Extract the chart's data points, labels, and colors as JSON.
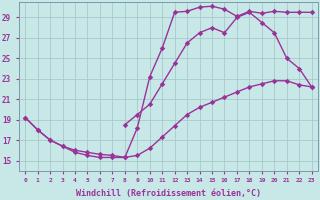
{
  "background_color": "#c8e8e8",
  "grid_color": "#a0c4c8",
  "line_color": "#993399",
  "xlabel": "Windchill (Refroidissement éolien,°C)",
  "xlim_min": -0.5,
  "xlim_max": 23.5,
  "ylim_min": 14.0,
  "ylim_max": 30.5,
  "yticks": [
    15,
    17,
    19,
    21,
    23,
    25,
    27,
    29
  ],
  "xticks": [
    0,
    1,
    2,
    3,
    4,
    5,
    6,
    7,
    8,
    9,
    10,
    11,
    12,
    13,
    14,
    15,
    16,
    17,
    18,
    19,
    20,
    21,
    22,
    23
  ],
  "curve1_x": [
    0,
    1,
    2,
    3,
    4,
    5,
    6,
    7,
    8,
    9,
    10,
    11,
    12,
    13,
    14,
    15,
    16,
    17,
    18,
    19,
    20,
    21,
    22,
    23
  ],
  "curve1_y": [
    19.2,
    18.0,
    17.0,
    16.4,
    15.8,
    15.5,
    15.3,
    15.3,
    15.3,
    18.2,
    23.2,
    26.0,
    29.5,
    29.6,
    30.0,
    30.1,
    29.8,
    29.1,
    29.6,
    29.4,
    29.6,
    29.5,
    29.5,
    29.5
  ],
  "curve2_x": [
    8,
    9,
    10,
    11,
    12,
    13,
    14,
    15,
    16,
    17,
    18,
    19,
    20,
    21,
    22,
    23
  ],
  "curve2_y": [
    18.5,
    19.5,
    20.5,
    22.5,
    24.5,
    26.5,
    27.5,
    28.0,
    27.5,
    29.0,
    29.5,
    28.5,
    27.5,
    25.0,
    24.0,
    22.2
  ],
  "curve3_x": [
    0,
    1,
    2,
    3,
    4,
    5,
    6,
    7,
    8,
    9,
    10,
    11,
    12,
    13,
    14,
    15,
    16,
    17,
    18,
    19,
    20,
    21,
    22,
    23
  ],
  "curve3_y": [
    19.2,
    18.0,
    17.0,
    16.4,
    16.0,
    15.8,
    15.6,
    15.5,
    15.3,
    15.5,
    16.2,
    17.3,
    18.4,
    19.5,
    20.2,
    20.7,
    21.2,
    21.7,
    22.2,
    22.5,
    22.8,
    22.8,
    22.4,
    22.2
  ]
}
